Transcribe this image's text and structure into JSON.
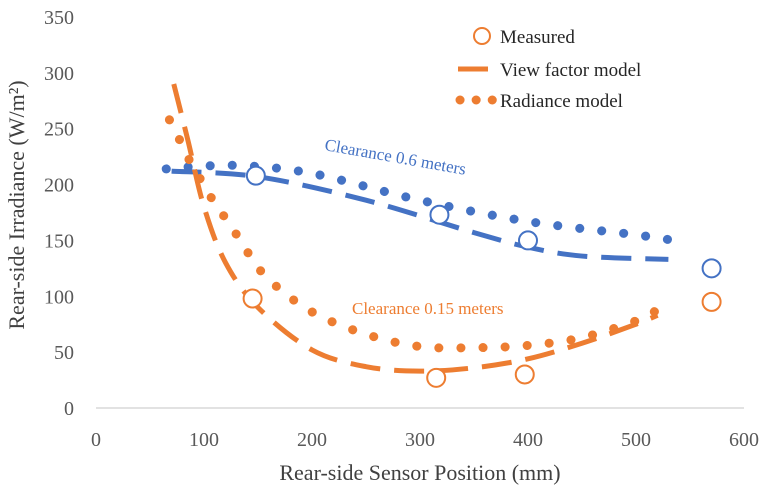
{
  "chart_data": {
    "type": "scatter",
    "xlabel": "Rear-side Sensor Position (mm)",
    "ylabel": "Rear-side Irradiance (W/m²)",
    "xlim": [
      0,
      600
    ],
    "ylim": [
      0,
      350
    ],
    "x_ticks": [
      "0",
      "100",
      "200",
      "300",
      "400",
      "500",
      "600"
    ],
    "y_ticks": [
      "0",
      "50",
      "100",
      "150",
      "200",
      "250",
      "300",
      "350"
    ],
    "grid": false,
    "legend_position": "top-right",
    "legend": [
      {
        "label": "Measured",
        "style": "open-circle"
      },
      {
        "label": "View factor model",
        "style": "dashed"
      },
      {
        "label": "Radiance model",
        "style": "dotted"
      }
    ],
    "annotations": [
      {
        "text": "Clearance 0.6 meters",
        "color": "#4472C4"
      },
      {
        "text": "Clearance 0.15 meters",
        "color": "#ED7D31"
      }
    ],
    "colors": {
      "clearance_0_6": "#4472C4",
      "clearance_0_15": "#ED7D31"
    },
    "series": [
      {
        "clearance": "0.6",
        "kind": "Measured",
        "x": [
          148,
          318,
          400,
          570
        ],
        "y": [
          208,
          173,
          150,
          125
        ]
      },
      {
        "clearance": "0.6",
        "kind": "View factor model",
        "x": [
          70,
          150,
          250,
          350,
          400,
          450,
          530
        ],
        "y": [
          212,
          207,
          186,
          157,
          144,
          136,
          133
        ]
      },
      {
        "clearance": "0.6",
        "kind": "Radiance model",
        "x": [
          65,
          90,
          135,
          200,
          300,
          400,
          500,
          535
        ],
        "y": [
          214,
          216,
          217,
          210,
          186,
          167,
          155,
          150
        ]
      },
      {
        "clearance": "0.15",
        "kind": "Measured",
        "x": [
          145,
          315,
          397,
          570
        ],
        "y": [
          98,
          27,
          30,
          95
        ]
      },
      {
        "clearance": "0.15",
        "kind": "View factor model",
        "x": [
          72,
          85,
          100,
          120,
          150,
          200,
          250,
          300,
          350,
          400,
          450,
          500,
          520
        ],
        "y": [
          290,
          240,
          180,
          130,
          90,
          52,
          37,
          33,
          36,
          44,
          58,
          75,
          83
        ]
      },
      {
        "clearance": "0.15",
        "kind": "Radiance model",
        "x": [
          68,
          80,
          90,
          100,
          110,
          125,
          140,
          160,
          200,
          250,
          300,
          350,
          400,
          450,
          500,
          520
        ],
        "y": [
          258,
          235,
          215,
          200,
          183,
          163,
          140,
          115,
          86,
          66,
          55,
          54,
          56,
          63,
          78,
          88
        ]
      }
    ]
  }
}
